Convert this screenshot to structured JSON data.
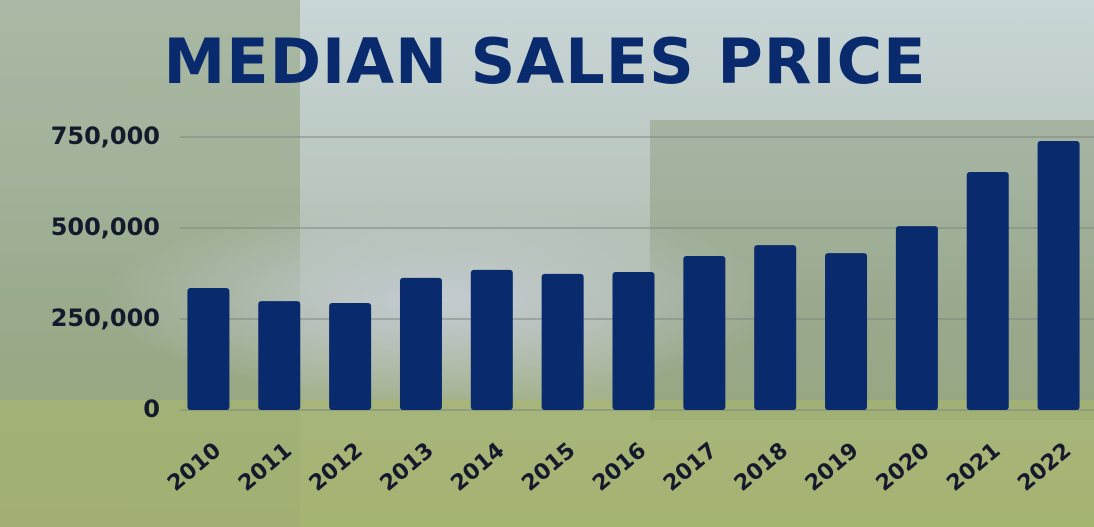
{
  "chart_data": {
    "type": "bar",
    "title": "MEDIAN SALES PRICE",
    "categories": [
      "2010",
      "2011",
      "2012",
      "2013",
      "2014",
      "2015",
      "2016",
      "2017",
      "2018",
      "2019",
      "2020",
      "2021",
      "2022"
    ],
    "values": [
      335000,
      299000,
      294000,
      363000,
      385000,
      374000,
      379000,
      423000,
      453000,
      431000,
      505000,
      654000,
      739000
    ],
    "color": "#0a2a6e",
    "ylim": [
      0,
      750000
    ],
    "yticks": [
      0,
      {
        "value": 250000,
        "label": "250,000"
      },
      {
        "value": 500000,
        "label": "500,000"
      },
      {
        "value": 750000,
        "label": "750,000"
      }
    ],
    "grid": true
  }
}
